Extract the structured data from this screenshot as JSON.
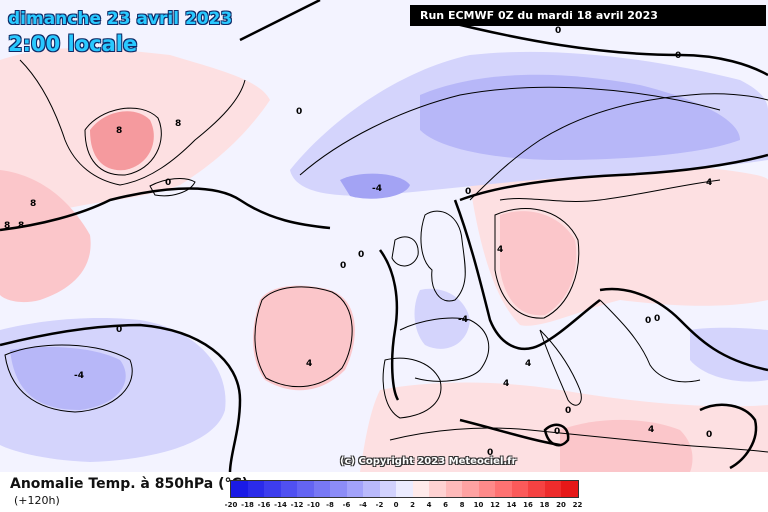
{
  "header": {
    "date": "dimanche 23 avril 2023",
    "time": "2:00 locale",
    "run": "Run ECMWF 0Z du mardi 18 avril 2023"
  },
  "copyright": "(c) Copyright 2023 Meteociel.fr",
  "legend": {
    "title": "Anomalie Temp. à 850hPa (°C)",
    "lead_time": "(+120h)",
    "ticks": [
      "-20",
      "-18",
      "-16",
      "-14",
      "-12",
      "-10",
      "-8",
      "-6",
      "-4",
      "-2",
      "0",
      "2",
      "4",
      "6",
      "8",
      "10",
      "12",
      "14",
      "16",
      "18",
      "20",
      "22"
    ],
    "colors": [
      "#1a1ae6",
      "#2b2bea",
      "#3d3dee",
      "#5050f1",
      "#6464f3",
      "#7878f5",
      "#8c8cf7",
      "#a2a2fa",
      "#b9b9fb",
      "#d2d2fd",
      "#ececff",
      "#ffeaea",
      "#ffd2d2",
      "#ffbaba",
      "#ffa2a2",
      "#ff8a8a",
      "#ff7272",
      "#fb5a5a",
      "#f54242",
      "#ee2c2c",
      "#e61818"
    ]
  },
  "map": {
    "colors": {
      "neutral": "#f3f3ff",
      "cold_light": "#d4d4fc",
      "cold_mid": "#b7b7f8",
      "cold_strong": "#a3a3f4",
      "warm_light": "#fde0e2",
      "warm_mid": "#fbc6ca",
      "warm_strong": "#f59a9e",
      "coast": "#000000"
    },
    "contour_labels": [
      {
        "text": "0",
        "region": "greenland-south"
      },
      {
        "text": "8",
        "region": "greenland-center"
      },
      {
        "text": "8",
        "region": "greenland-east"
      },
      {
        "text": "8",
        "region": "labrador"
      },
      {
        "text": "8",
        "region": "labrador"
      },
      {
        "text": "8",
        "region": "labrador"
      },
      {
        "text": "0",
        "region": "north-atlantic"
      },
      {
        "text": "0",
        "region": "norwegian-sea"
      },
      {
        "text": "0",
        "region": "barents"
      },
      {
        "text": "-4",
        "region": "north-sea"
      },
      {
        "text": "0",
        "region": "denmark"
      },
      {
        "text": "4",
        "region": "poland"
      },
      {
        "text": "0",
        "region": "ireland"
      },
      {
        "text": "0",
        "region": "uk"
      },
      {
        "text": "-4",
        "region": "france"
      },
      {
        "text": "4",
        "region": "germany"
      },
      {
        "text": "0",
        "region": "mid-atlantic"
      },
      {
        "text": "-4",
        "region": "west-atlantic"
      },
      {
        "text": "4",
        "region": "azores"
      },
      {
        "text": "0",
        "region": "balkans"
      },
      {
        "text": "4",
        "region": "italy"
      },
      {
        "text": "4",
        "region": "spain"
      },
      {
        "text": "0",
        "region": "sardinia"
      },
      {
        "text": "0",
        "region": "tunisia"
      },
      {
        "text": "0",
        "region": "algeria"
      },
      {
        "text": "4",
        "region": "libya"
      },
      {
        "text": "0",
        "region": "greece"
      },
      {
        "text": "0",
        "region": "turkey"
      }
    ]
  }
}
